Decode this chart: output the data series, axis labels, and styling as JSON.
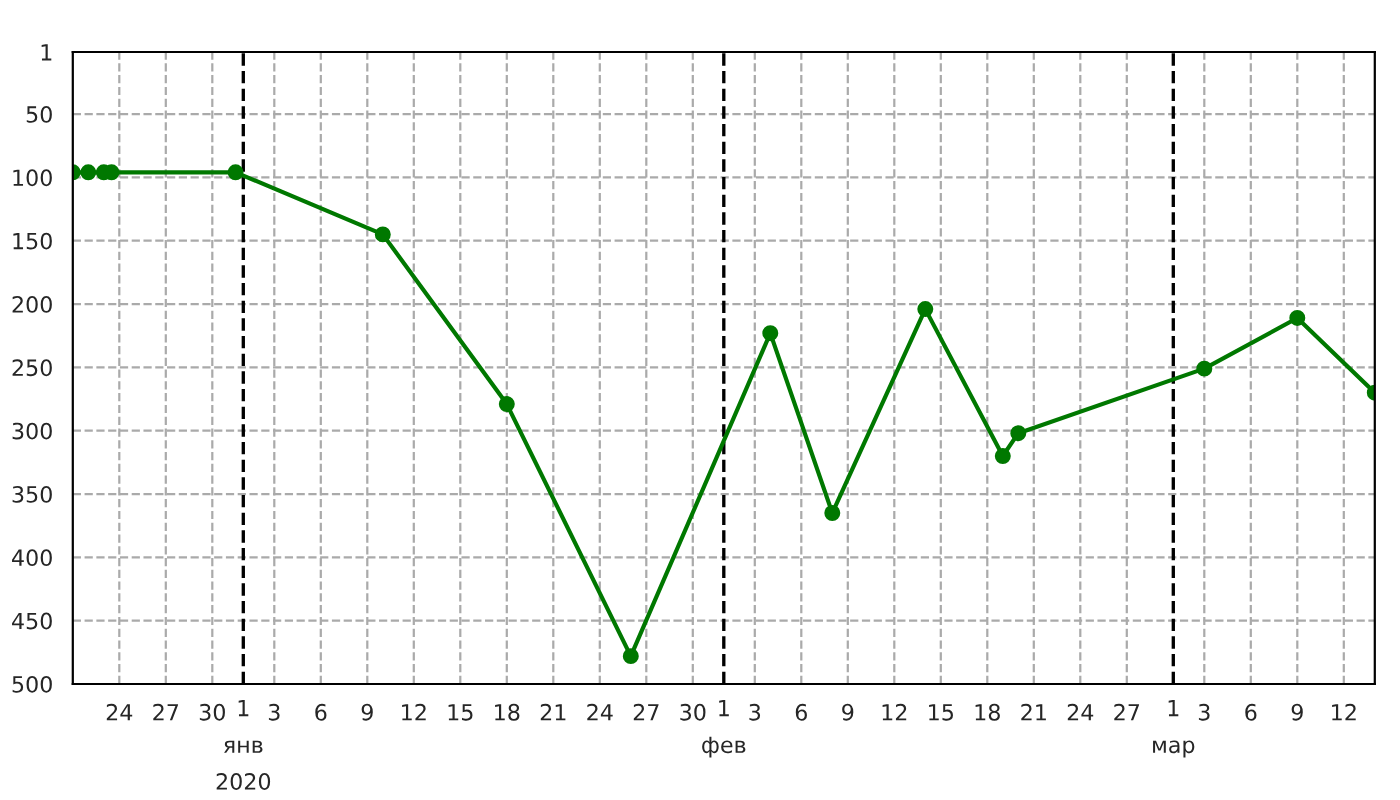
{
  "chart_data": {
    "type": "line",
    "x": [
      "2019-12-21",
      "2019-12-22",
      "2019-12-23",
      "2019-12-23T12:00",
      "2019-12-31T12:00",
      "2020-01-10",
      "2020-01-18",
      "2020-01-26",
      "2020-02-04",
      "2020-02-08",
      "2020-02-14",
      "2020-02-19",
      "2020-02-20",
      "2020-03-03",
      "2020-03-09",
      "2020-03-14"
    ],
    "series": [
      {
        "color": "#007800",
        "values": [
          96,
          96,
          96,
          96,
          96,
          145,
          279,
          478,
          223,
          365,
          204,
          320,
          302,
          251,
          211,
          270
        ]
      }
    ],
    "ylim": [
      500,
      1
    ],
    "yticks": [
      1,
      50,
      100,
      150,
      200,
      250,
      300,
      350,
      400,
      450,
      500
    ],
    "xlim": [
      "2019-12-21",
      "2020-03-14"
    ],
    "xticks": [
      {
        "value": "2019-12-24",
        "label": "24"
      },
      {
        "value": "2019-12-27",
        "label": "27"
      },
      {
        "value": "2019-12-30",
        "label": "30"
      },
      {
        "value": "2020-01-03",
        "label": "3"
      },
      {
        "value": "2020-01-06",
        "label": "6"
      },
      {
        "value": "2020-01-09",
        "label": "9"
      },
      {
        "value": "2020-01-12",
        "label": "12"
      },
      {
        "value": "2020-01-15",
        "label": "15"
      },
      {
        "value": "2020-01-18",
        "label": "18"
      },
      {
        "value": "2020-01-21",
        "label": "21"
      },
      {
        "value": "2020-01-24",
        "label": "24"
      },
      {
        "value": "2020-01-27",
        "label": "27"
      },
      {
        "value": "2020-01-30",
        "label": "30"
      },
      {
        "value": "2020-02-03",
        "label": "3"
      },
      {
        "value": "2020-02-06",
        "label": "6"
      },
      {
        "value": "2020-02-09",
        "label": "9"
      },
      {
        "value": "2020-02-12",
        "label": "12"
      },
      {
        "value": "2020-02-15",
        "label": "15"
      },
      {
        "value": "2020-02-18",
        "label": "18"
      },
      {
        "value": "2020-02-21",
        "label": "21"
      },
      {
        "value": "2020-02-24",
        "label": "24"
      },
      {
        "value": "2020-02-27",
        "label": "27"
      },
      {
        "value": "2020-03-03",
        "label": "3"
      },
      {
        "value": "2020-03-06",
        "label": "6"
      },
      {
        "value": "2020-03-09",
        "label": "9"
      },
      {
        "value": "2020-03-12",
        "label": "12"
      }
    ],
    "ref_lines": [
      {
        "axis": "x",
        "value": "2020-01-01",
        "label": "1\nянв\n2020",
        "color": "#000000",
        "line_style": "dashed"
      },
      {
        "axis": "x",
        "value": "2020-02-01",
        "label": "1\nфев",
        "color": "#000000",
        "line_style": "dashed"
      },
      {
        "axis": "x",
        "value": "2020-03-01",
        "label": "1\nмар",
        "color": "#000000",
        "line_style": "dashed"
      }
    ],
    "grid": true,
    "marker": "circle",
    "line_style": "solid"
  }
}
